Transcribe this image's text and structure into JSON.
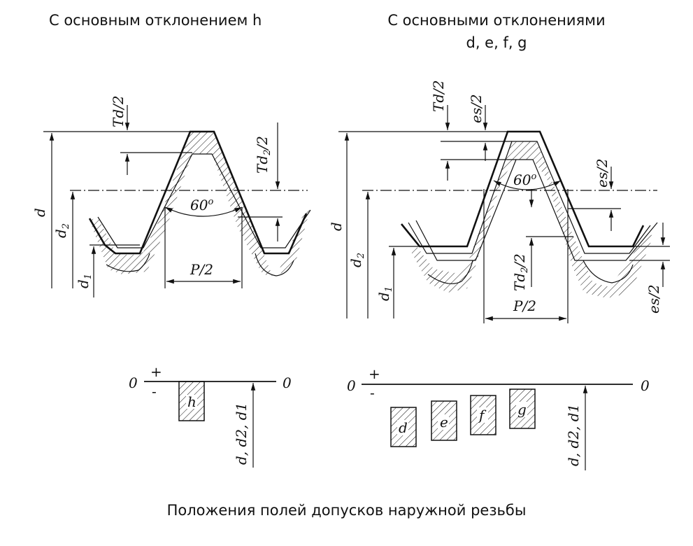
{
  "headings": {
    "left": "С основным отклонением h",
    "right_line1": "С основными отклонениями",
    "right_line2": "d, e, f, g"
  },
  "caption": "Положения полей допусков наружной резьбы",
  "left_profile": {
    "labels": {
      "d": "d",
      "d2": "d",
      "d2_sub": "2",
      "d1": "d",
      "d1_sub": "1",
      "td2": "Td/2",
      "td2_2": "Td",
      "td2_2_sub": "2",
      "td2_2_tail": "/2",
      "angle": "60",
      "angle_sup": "o",
      "pitch": "P/2"
    }
  },
  "right_profile": {
    "labels": {
      "d": "d",
      "d2": "d",
      "d2_sub": "2",
      "d1": "d",
      "d1_sub": "1",
      "td2": "Td/2",
      "es2_top": "es/2",
      "es2_mid": "es/2",
      "es2_bottom": "es/2",
      "td2_2": "Td",
      "td2_2_sub": "2",
      "td2_2_tail": "/2",
      "angle": "60",
      "angle_sup": "o",
      "pitch": "P/2"
    }
  },
  "left_tolerance": {
    "zero_left": "0",
    "zero_right": "0",
    "plus": "+",
    "minus": "-",
    "fields": [
      "h"
    ],
    "vertical_label": "d, d2, d1"
  },
  "right_tolerance": {
    "zero_left": "0",
    "zero_right": "0",
    "plus": "+",
    "minus": "-",
    "fields": [
      "d",
      "e",
      "f",
      "g"
    ],
    "vertical_label": "d, d2, d1"
  }
}
